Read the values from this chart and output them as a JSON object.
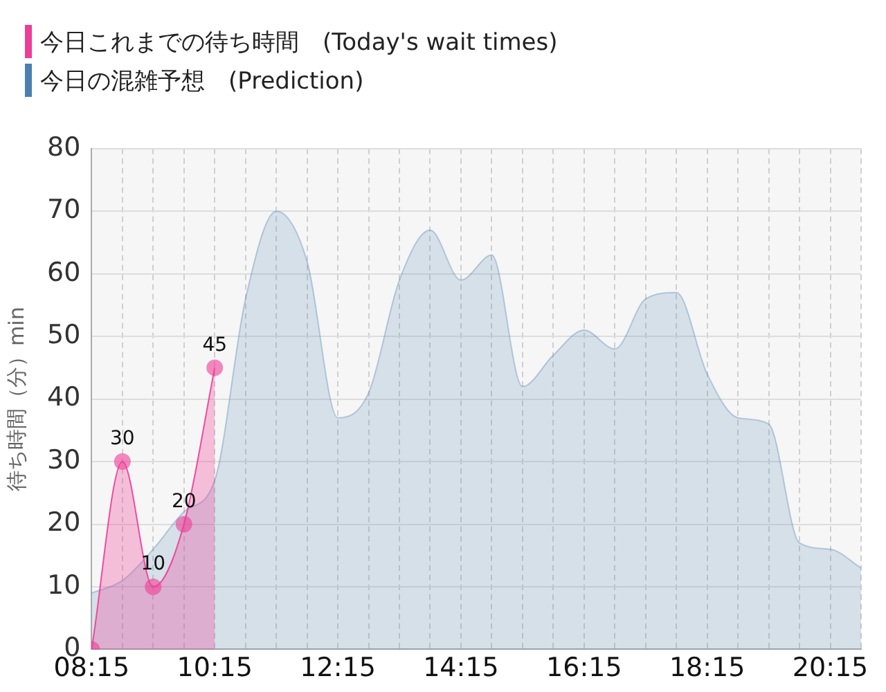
{
  "chart_data": {
    "type": "area",
    "ylabel": "待ち時間（分）min",
    "legend": "top left",
    "xlim": [
      8.25,
      20.75
    ],
    "xticks": [
      {
        "value": 8.25,
        "label": "08:15"
      },
      {
        "value": 8.75,
        "label": null
      },
      {
        "value": 9.25,
        "label": null
      },
      {
        "value": 9.75,
        "label": null
      },
      {
        "value": 10.25,
        "label": "10:15"
      },
      {
        "value": 10.75,
        "label": null
      },
      {
        "value": 11.25,
        "label": null
      },
      {
        "value": 11.75,
        "label": null
      },
      {
        "value": 12.25,
        "label": "12:15"
      },
      {
        "value": 12.75,
        "label": null
      },
      {
        "value": 13.25,
        "label": null
      },
      {
        "value": 13.75,
        "label": null
      },
      {
        "value": 14.25,
        "label": "14:15"
      },
      {
        "value": 14.75,
        "label": null
      },
      {
        "value": 15.25,
        "label": null
      },
      {
        "value": 15.75,
        "label": null
      },
      {
        "value": 16.25,
        "label": "16:15"
      },
      {
        "value": 16.75,
        "label": null
      },
      {
        "value": 17.25,
        "label": null
      },
      {
        "value": 17.75,
        "label": null
      },
      {
        "value": 18.25,
        "label": "18:15"
      },
      {
        "value": 18.75,
        "label": null
      },
      {
        "value": 19.25,
        "label": null
      },
      {
        "value": 19.75,
        "label": null
      },
      {
        "value": 20.25,
        "label": "20:15"
      },
      {
        "value": 20.75,
        "label": null
      }
    ],
    "ylim": [
      0,
      80
    ],
    "yticks": [
      0,
      10,
      20,
      30,
      40,
      50,
      60,
      70,
      80
    ],
    "grid": true,
    "series": [
      {
        "name": "今日これまでの待ち時間　(Today's wait times)",
        "color": "#ee3d96",
        "marker": "circle",
        "x": [
          8.25,
          8.75,
          9.25,
          9.75,
          10.25
        ],
        "values": [
          0,
          30,
          10,
          20,
          45
        ],
        "value_labels": [
          null,
          "30",
          "10",
          "20",
          "45"
        ]
      },
      {
        "name": "今日の混雑予想　(Prediction)",
        "color": "#4a7faf",
        "marker": "none",
        "x": [
          8.25,
          8.75,
          9.25,
          9.75,
          10.25,
          10.75,
          11.25,
          11.75,
          12.25,
          12.75,
          13.25,
          13.75,
          14.25,
          14.75,
          15.25,
          15.75,
          16.25,
          16.75,
          17.25,
          17.75,
          18.25,
          18.75,
          19.25,
          19.75,
          20.25,
          20.75
        ],
        "values": [
          9,
          11,
          16,
          22,
          27,
          56,
          70,
          62,
          37,
          41,
          59,
          67,
          59,
          63,
          42,
          47,
          51,
          48,
          56,
          57,
          44,
          37,
          36,
          17,
          16,
          13
        ]
      }
    ]
  }
}
